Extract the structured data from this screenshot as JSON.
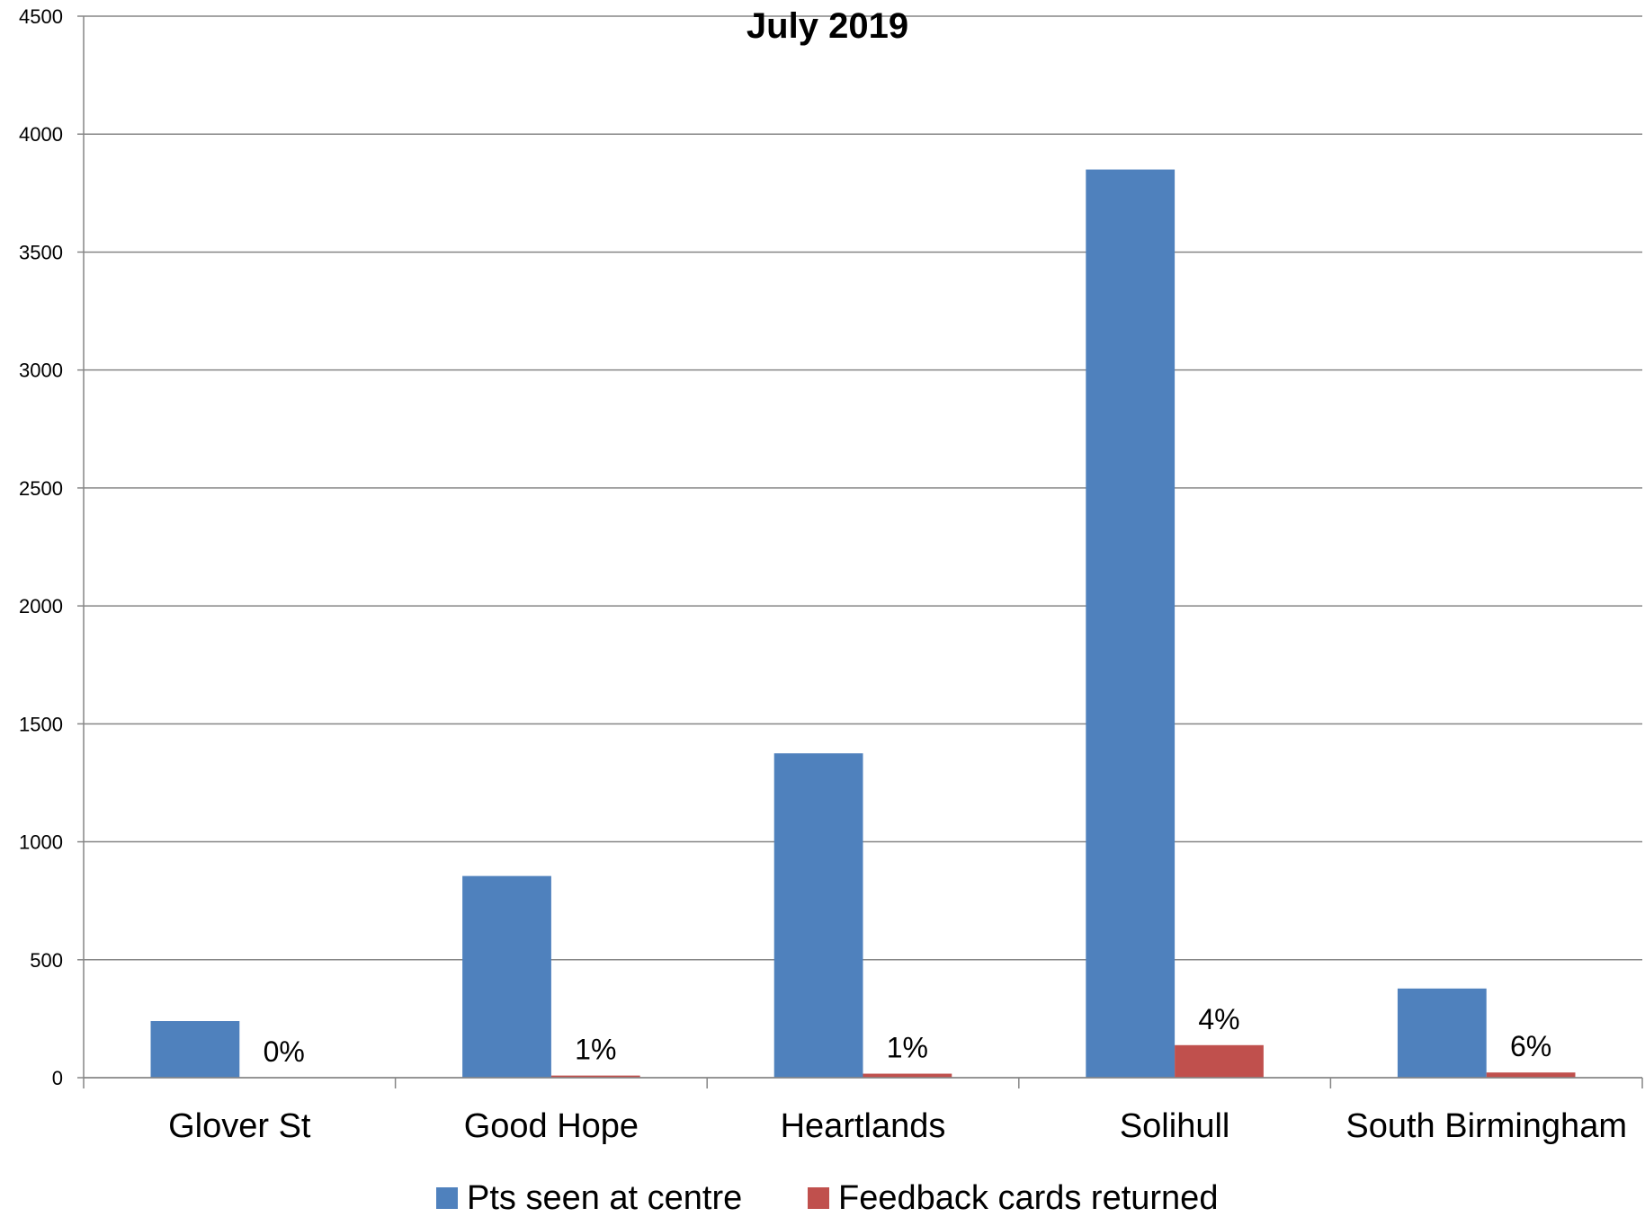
{
  "chart_data": {
    "type": "bar",
    "title": "July 2019",
    "categories": [
      "Glover St",
      "Good Hope",
      "Heartlands",
      "Solihull",
      "South Birmingham"
    ],
    "series": [
      {
        "name": "Pts seen at centre",
        "color": "#4F81BD",
        "values": [
          240,
          855,
          1375,
          3850,
          378
        ]
      },
      {
        "name": "Feedback cards returned",
        "color": "#C0504D",
        "values": [
          0,
          9,
          17,
          138,
          22
        ],
        "data_labels": [
          "0%",
          "1%",
          "1%",
          "4%",
          "6%"
        ]
      }
    ],
    "ylim": [
      0,
      4500
    ],
    "yticks": [
      0,
      500,
      1000,
      1500,
      2000,
      2500,
      3000,
      3500,
      4000,
      4500
    ],
    "grid": true,
    "legend_position": "bottom"
  }
}
